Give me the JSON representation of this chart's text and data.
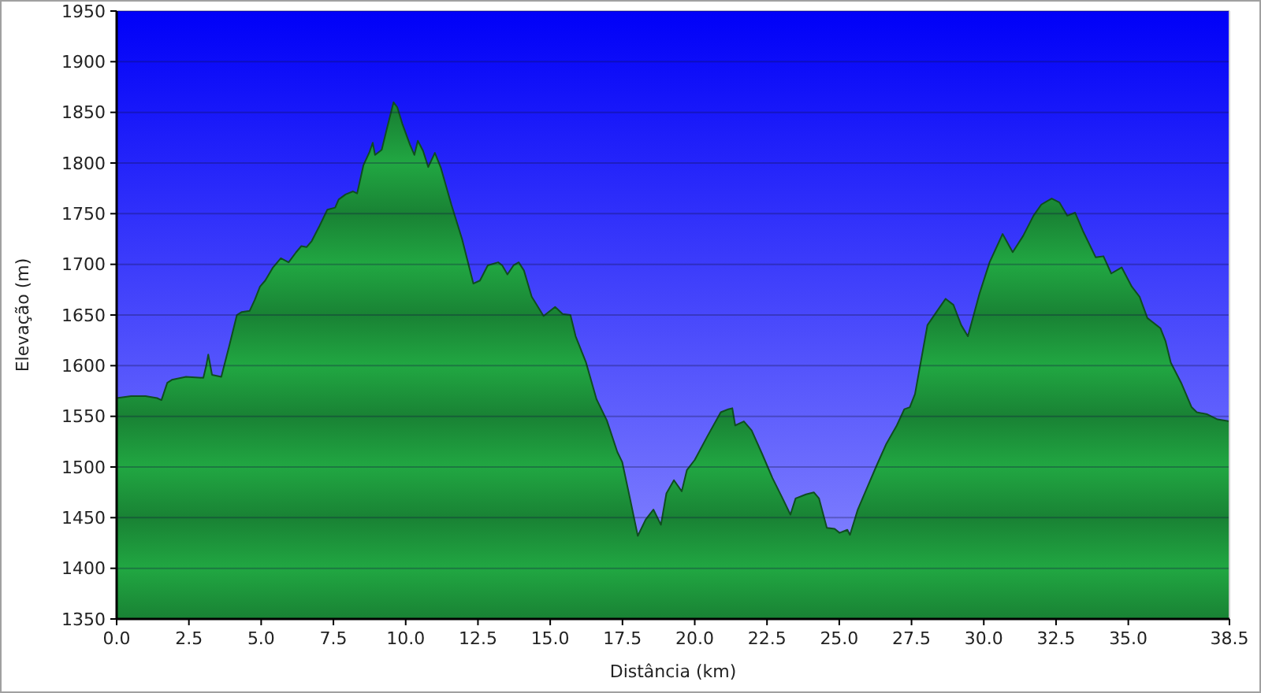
{
  "chart_data": {
    "type": "area",
    "xlabel": "Distância (km)",
    "ylabel": "Elevação (m)",
    "color": "#1f9e3f",
    "grid": "y",
    "xlim": [
      0,
      38.5
    ],
    "ylim": [
      1350,
      1950
    ],
    "xticks": [
      {
        "value": 0,
        "label": "0.0"
      },
      2.5,
      {
        "value": 5,
        "label": "5.0"
      },
      7.5,
      {
        "value": 10,
        "label": "10.0"
      },
      12.5,
      {
        "value": 15,
        "label": "15.0"
      },
      17.5,
      {
        "value": 20,
        "label": "20.0"
      },
      22.5,
      {
        "value": 25,
        "label": "25.0"
      },
      27.5,
      {
        "value": 30,
        "label": "30.0"
      },
      32.5,
      {
        "value": 35,
        "label": "35.0"
      },
      38.5
    ],
    "yticks": [
      1350,
      1400,
      1450,
      1500,
      1550,
      1600,
      1650,
      1700,
      1750,
      1800,
      1850,
      1900,
      1950
    ],
    "x": [
      0,
      0.5,
      1.0,
      1.4,
      1.55,
      1.75,
      1.91,
      2.4,
      3.0,
      3.1,
      3.17,
      3.3,
      3.62,
      3.89,
      4.16,
      4.33,
      4.6,
      4.78,
      4.96,
      5.14,
      5.41,
      5.68,
      5.95,
      6.21,
      6.39,
      6.57,
      6.75,
      7.02,
      7.29,
      7.56,
      7.68,
      7.92,
      8.18,
      8.32,
      8.54,
      8.75,
      8.86,
      8.94,
      9.17,
      9.35,
      9.58,
      9.71,
      9.88,
      10.15,
      10.3,
      10.42,
      10.6,
      10.78,
      11.01,
      11.22,
      11.58,
      11.95,
      12.34,
      12.57,
      12.84,
      13.2,
      13.34,
      13.52,
      13.73,
      13.91,
      14.09,
      14.36,
      14.77,
      15.17,
      15.43,
      15.7,
      15.88,
      16.24,
      16.6,
      16.96,
      17.32,
      17.49,
      17.76,
      18.03,
      18.3,
      18.57,
      18.83,
      19.02,
      19.28,
      19.55,
      19.73,
      20.0,
      20.45,
      20.9,
      21.16,
      21.3,
      21.4,
      21.7,
      21.97,
      22.33,
      22.69,
      23.04,
      23.31,
      23.49,
      23.85,
      24.12,
      24.3,
      24.57,
      24.84,
      25.01,
      25.28,
      25.37,
      25.64,
      25.91,
      26.27,
      26.63,
      26.99,
      27.25,
      27.44,
      27.62,
      28.05,
      28.41,
      28.68,
      28.95,
      29.22,
      29.45,
      29.85,
      30.2,
      30.65,
      31.0,
      31.36,
      31.72,
      31.99,
      32.35,
      32.62,
      32.89,
      33.16,
      33.43,
      33.87,
      34.14,
      34.41,
      34.77,
      35.12,
      35.39,
      35.66,
      36.11,
      36.29,
      36.47,
      36.83,
      37.19,
      37.37,
      37.73,
      38.09,
      38.5
    ],
    "values": [
      1568,
      1570,
      1570,
      1568,
      1566,
      1583,
      1586,
      1589,
      1588,
      1600,
      1611,
      1591,
      1589,
      1619,
      1650,
      1653,
      1654,
      1665,
      1678,
      1684,
      1697,
      1706,
      1702,
      1712,
      1718,
      1717,
      1723,
      1738,
      1754,
      1756,
      1764,
      1769,
      1772,
      1770,
      1798,
      1811,
      1820,
      1808,
      1813,
      1834,
      1860,
      1855,
      1839,
      1818,
      1808,
      1822,
      1812,
      1796,
      1810,
      1795,
      1759,
      1725,
      1681,
      1684,
      1699,
      1702,
      1699,
      1690,
      1699,
      1702,
      1694,
      1668,
      1649,
      1658,
      1651,
      1650,
      1629,
      1603,
      1567,
      1546,
      1515,
      1505,
      1469,
      1432,
      1448,
      1458,
      1443,
      1474,
      1487,
      1476,
      1497,
      1507,
      1531,
      1554,
      1557,
      1558,
      1541,
      1545,
      1536,
      1513,
      1489,
      1469,
      1453,
      1469,
      1473,
      1475,
      1469,
      1440,
      1439,
      1435,
      1438,
      1433,
      1458,
      1476,
      1500,
      1523,
      1541,
      1557,
      1559,
      1572,
      1640,
      1655,
      1666,
      1660,
      1640,
      1629,
      1671,
      1702,
      1730,
      1712,
      1728,
      1748,
      1759,
      1765,
      1761,
      1748,
      1751,
      1733,
      1707,
      1708,
      1691,
      1697,
      1678,
      1668,
      1647,
      1637,
      1624,
      1603,
      1583,
      1559,
      1554,
      1552,
      1547,
      1545
    ]
  }
}
